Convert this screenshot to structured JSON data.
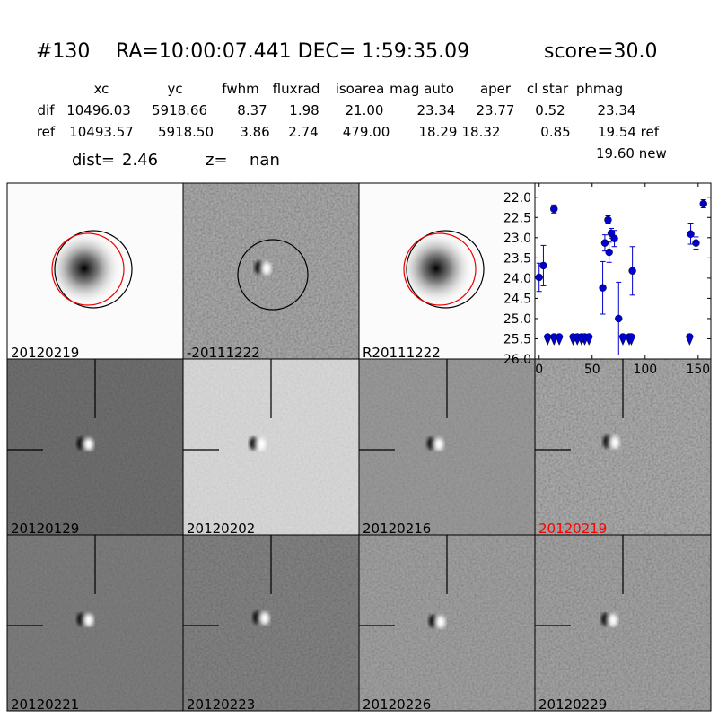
{
  "header": {
    "id": "#130",
    "coords": "RA=10:00:07.441 DEC= 1:59:35.09",
    "score": "score=30.0",
    "columns": [
      "xc",
      "yc",
      "fwhm",
      "fluxrad",
      "isoarea",
      "mag auto",
      "aper",
      "cl star",
      "phmag"
    ],
    "rows": [
      [
        "dif",
        "10496.03",
        "5918.66",
        "8.37",
        "1.98",
        "21.00",
        "23.34",
        "23.77",
        "0.52",
        "23.34"
      ],
      [
        "ref",
        "10493.57",
        "5918.50",
        "3.86",
        "2.74",
        "479.00",
        "18.29",
        "18.32",
        "0.85",
        "19.54 ref"
      ]
    ],
    "new_mag": "19.60 new",
    "dist_label": "dist=",
    "dist": "2.46",
    "z_label": "z=",
    "z": "nan"
  },
  "panels": [
    {
      "label": "20120219"
    },
    {
      "label": "-20111222"
    },
    {
      "label": "R20111222"
    },
    {
      "label": "20120129"
    },
    {
      "label": "20120202"
    },
    {
      "label": "20120216"
    },
    {
      "label": "20120219",
      "color": "#ff0000"
    },
    {
      "label": "20120221"
    },
    {
      "label": "20120223"
    },
    {
      "label": "20120226"
    },
    {
      "label": "20120229"
    }
  ],
  "chart_data": {
    "type": "scatter",
    "color": "#0000cc",
    "xlim": [
      -4,
      162
    ],
    "xticks": [
      0,
      50,
      100,
      150
    ],
    "ylim": [
      26.0,
      21.65
    ],
    "yticks": [
      {
        "value": 22,
        "label": "22.0"
      },
      22.5,
      {
        "value": 23,
        "label": "23.0"
      },
      23.5,
      {
        "value": 24,
        "label": "24.0"
      },
      24.5,
      {
        "value": 25,
        "label": "25.0"
      },
      25.5,
      {
        "value": 26,
        "label": "26.0"
      }
    ],
    "series": [
      {
        "marker": "o",
        "x": [
          0,
          4,
          14,
          60,
          62,
          65,
          66,
          68,
          71,
          75,
          88,
          143,
          148,
          155
        ],
        "values": [
          23.98,
          23.69,
          22.29,
          24.24,
          23.13,
          22.56,
          23.36,
          22.89,
          23.02,
          25.0,
          23.82,
          22.91,
          23.13,
          22.16
        ],
        "errors": [
          0.35,
          0.5,
          0.1,
          0.65,
          0.2,
          0.1,
          0.25,
          0.12,
          0.2,
          0.9,
          0.6,
          0.25,
          0.15,
          0.1
        ]
      },
      {
        "marker": "v",
        "x": [
          8,
          14,
          19,
          32,
          36,
          40,
          43,
          47,
          79,
          85,
          87,
          142
        ],
        "values": [
          25.5,
          25.5,
          25.5,
          25.5,
          25.5,
          25.5,
          25.5,
          25.5,
          25.5,
          25.5,
          25.5,
          25.5
        ]
      }
    ]
  }
}
